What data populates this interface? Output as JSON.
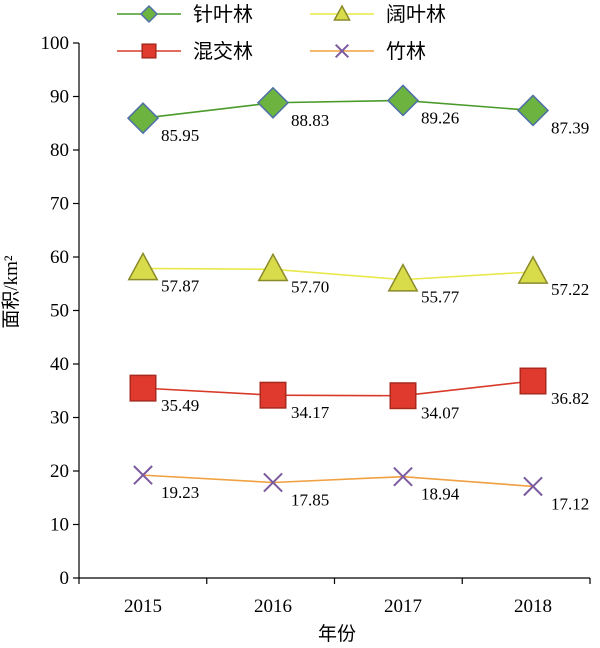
{
  "chart_data": {
    "type": "line",
    "title": "",
    "xlabel": "年份",
    "ylabel": "面积/km²",
    "categories": [
      "2015",
      "2016",
      "2017",
      "2018"
    ],
    "ylim": [
      0,
      100
    ],
    "yticks": [
      "0",
      "10",
      "20",
      "30",
      "40",
      "50",
      "60",
      "70",
      "80",
      "90",
      "100"
    ],
    "grid": false,
    "legend_position": "top",
    "series": [
      {
        "name": "针叶林",
        "values": [
          85.95,
          88.83,
          89.26,
          87.39
        ],
        "labels": [
          "85.95",
          "88.83",
          "89.26",
          "87.39"
        ],
        "color": "#4a9a2a",
        "marker": "diamond",
        "marker_fill": "#6cb33f",
        "marker_stroke": "#4f6fa8"
      },
      {
        "name": "阔叶林",
        "values": [
          57.87,
          57.7,
          55.77,
          57.22
        ],
        "labels": [
          "57.87",
          "57.70",
          "55.77",
          "57.22"
        ],
        "color": "#e8e84a",
        "marker": "triangle",
        "marker_fill": "#d9dc4a",
        "marker_stroke": "#8a8a2a"
      },
      {
        "name": "混交林",
        "values": [
          35.49,
          34.17,
          34.07,
          36.82
        ],
        "labels": [
          "35.49",
          "34.17",
          "34.07",
          "36.82"
        ],
        "color": "#d83a2a",
        "marker": "square",
        "marker_fill": "#e03a2e",
        "marker_stroke": "#a82a1e"
      },
      {
        "name": "竹林",
        "values": [
          19.23,
          17.85,
          18.94,
          17.12
        ],
        "labels": [
          "19.23",
          "17.85",
          "18.94",
          "17.12"
        ],
        "color": "#f0a040",
        "marker": "x",
        "marker_fill": "none",
        "marker_stroke": "#7b5aa0"
      }
    ]
  }
}
